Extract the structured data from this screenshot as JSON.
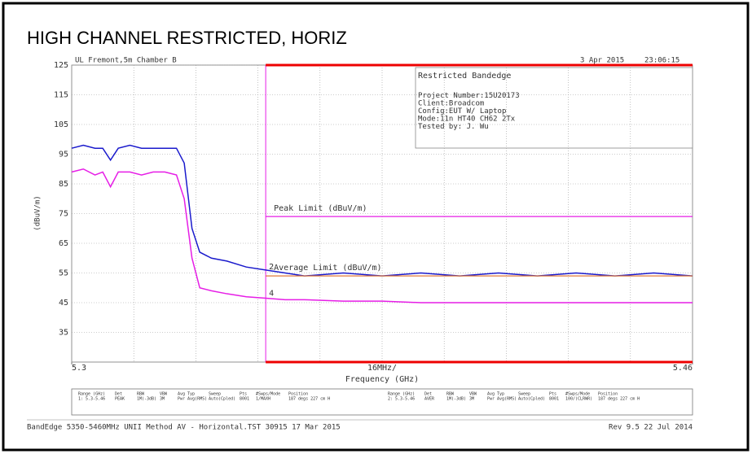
{
  "chart_data": {
    "type": "line",
    "title": "HIGH CHANNEL RESTRICTED, HORIZ",
    "header_left": "UL Fremont,5m Chamber B",
    "header_date": "3 Apr 2015",
    "header_time": "23:06:15",
    "info": [
      "Restricted Bandedge",
      "Project Number:15U20173",
      "Client:Broadcom",
      "Config:EUT W/ Laptop",
      "Mode:11n HT40 CH62 2Tx",
      "Tested by: J. Wu"
    ],
    "y_label": "(dBuV/m)",
    "x_label": "Frequency (GHz)",
    "x_center_label": "16MHz/",
    "x": [
      5.3,
      5.303,
      5.306,
      5.308,
      5.31,
      5.312,
      5.315,
      5.318,
      5.321,
      5.324,
      5.327,
      5.329,
      5.331,
      5.333,
      5.336,
      5.34,
      5.345,
      5.35,
      5.355,
      5.36,
      5.37,
      5.38,
      5.39,
      5.4,
      5.41,
      5.42,
      5.43,
      5.44,
      5.45,
      5.46
    ],
    "series": [
      {
        "color": "#1a1acc",
        "values": [
          97,
          98,
          97,
          97,
          93,
          97,
          98,
          97,
          97,
          97,
          97,
          92,
          70,
          62,
          60,
          59,
          57,
          56,
          55,
          54,
          55,
          54,
          55,
          54,
          55,
          54,
          55,
          54,
          55,
          54
        ]
      },
      {
        "color": "#e61ee6",
        "values": [
          89,
          90,
          88,
          89,
          84,
          89,
          89,
          88,
          89,
          89,
          88,
          80,
          60,
          50,
          49,
          48,
          47,
          46.5,
          46,
          46,
          45.5,
          45.5,
          45,
          45,
          45,
          45,
          45,
          45,
          45,
          45
        ]
      }
    ],
    "xlim": [
      5.3,
      5.46
    ],
    "xticks": [
      5.3,
      5.46
    ],
    "ylim": [
      25,
      125
    ],
    "yticks": [
      35,
      45,
      55,
      65,
      75,
      85,
      95,
      105,
      115,
      125
    ],
    "grid": true,
    "restricted_band": [
      5.35,
      5.46
    ],
    "limits": [
      {
        "name": "Peak Limit (dBuV/m)",
        "value": 74,
        "color": "#e61ee6"
      },
      {
        "name": "Average Limit (dBuV/m)",
        "value": 54,
        "color": "#e07a3a"
      }
    ],
    "markers": [
      {
        "label": "2",
        "x": 5.35,
        "y": 56
      },
      {
        "label": "4",
        "x": 5.35,
        "y": 47
      }
    ],
    "table": {
      "header": [
        "Range (GHz)",
        "Det",
        "RBW",
        "VBW",
        "Avg Typ",
        "Sweep",
        "Pts",
        "#Swps/Mode",
        "Position"
      ],
      "rows": [
        [
          "1: 5.3-5.46",
          "PEAK",
          "1M(-3dB)",
          "3M",
          "Pwr Avg(RMS)",
          "Auto(Cpled)",
          "8001",
          "1/MAXH",
          "187 degs 227 cm H"
        ],
        [
          "2: 5.3-5.46",
          "AVER",
          "1M(-3dB)",
          "3M",
          "Pwr Avg(RMS)",
          "Auto(Cpled)",
          "8001",
          "100/(CLRWR)",
          "187 degs 227 cm H"
        ]
      ]
    },
    "footer_left": "BandEdge 5350-5460MHz UNII Method AV - Horizontal.TST 30915 17 Mar 2015",
    "footer_right": "Rev 9.5 22 Jul 2014"
  }
}
